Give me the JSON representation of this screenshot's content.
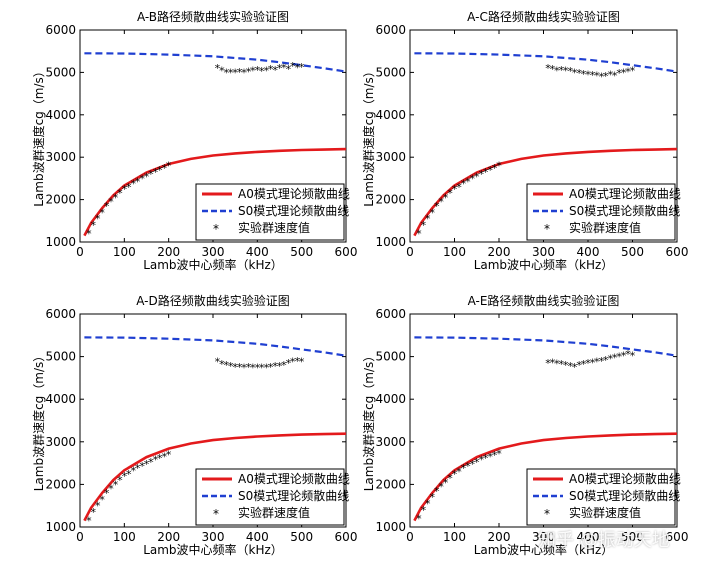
{
  "chart_data": [
    {
      "type": "line",
      "title": "A-B路径频散曲线实验验证图",
      "xlabel": "Lamb波中心频率（kHz）",
      "ylabel": "Lamb波群速度cg（m/s）",
      "xlim": [
        0,
        600
      ],
      "ylim": [
        1000,
        6000
      ],
      "xticks": [
        0,
        100,
        200,
        300,
        400,
        500,
        600
      ],
      "yticks": [
        1000,
        2000,
        3000,
        4000,
        5000,
        6000
      ],
      "legend_position": "bottom-right",
      "series": [
        {
          "name": "A0模式理论频散曲线",
          "kind": "line",
          "color": "#e31a1c",
          "x": [
            10,
            25,
            50,
            75,
            100,
            150,
            200,
            250,
            300,
            350,
            400,
            450,
            500,
            550,
            600
          ],
          "y": [
            1150,
            1450,
            1800,
            2100,
            2330,
            2640,
            2840,
            2960,
            3040,
            3090,
            3125,
            3150,
            3170,
            3180,
            3190
          ]
        },
        {
          "name": "S0模式理论频散曲线",
          "kind": "dashed",
          "color": "#1f3fd1",
          "x": [
            10,
            100,
            200,
            300,
            400,
            450,
            500,
            550,
            600
          ],
          "y": [
            5450,
            5445,
            5420,
            5380,
            5300,
            5240,
            5170,
            5100,
            5020
          ]
        },
        {
          "name": "实验群速度值",
          "kind": "marker",
          "color": "#000000",
          "x": [
            20,
            30,
            40,
            50,
            60,
            70,
            80,
            90,
            100,
            110,
            120,
            130,
            140,
            150,
            160,
            170,
            180,
            190,
            200,
            310,
            320,
            330,
            340,
            350,
            360,
            370,
            380,
            390,
            400,
            410,
            420,
            430,
            440,
            450,
            460,
            470,
            480,
            490,
            500
          ],
          "y": [
            1200,
            1400,
            1550,
            1700,
            1850,
            1950,
            2050,
            2150,
            2250,
            2300,
            2380,
            2430,
            2500,
            2550,
            2600,
            2650,
            2700,
            2750,
            2800,
            5100,
            5050,
            5000,
            5000,
            5000,
            5010,
            5000,
            5020,
            5040,
            5060,
            5030,
            5050,
            5080,
            5060,
            5100,
            5120,
            5080,
            5150,
            5120,
            5130
          ]
        }
      ]
    },
    {
      "type": "line",
      "title": "A-C路径频散曲线实验验证图",
      "xlabel": "Lamb波中心频率（kHz）",
      "ylabel": "Lamb波群速度cg（m/s）",
      "xlim": [
        0,
        600
      ],
      "ylim": [
        1000,
        6000
      ],
      "xticks": [
        0,
        100,
        200,
        300,
        400,
        500,
        600
      ],
      "yticks": [
        1000,
        2000,
        3000,
        4000,
        5000,
        6000
      ],
      "legend_position": "bottom-right",
      "series": [
        {
          "name": "A0模式理论频散曲线",
          "kind": "line",
          "color": "#e31a1c",
          "x": [
            10,
            25,
            50,
            75,
            100,
            150,
            200,
            250,
            300,
            350,
            400,
            450,
            500,
            550,
            600
          ],
          "y": [
            1150,
            1450,
            1800,
            2100,
            2330,
            2640,
            2840,
            2960,
            3040,
            3090,
            3125,
            3150,
            3170,
            3180,
            3190
          ]
        },
        {
          "name": "S0模式理论频散曲线",
          "kind": "dashed",
          "color": "#1f3fd1",
          "x": [
            10,
            100,
            200,
            300,
            400,
            450,
            500,
            550,
            600
          ],
          "y": [
            5450,
            5445,
            5420,
            5380,
            5300,
            5240,
            5170,
            5100,
            5020
          ]
        },
        {
          "name": "实验群速度值",
          "kind": "marker",
          "color": "#000000",
          "x": [
            20,
            30,
            40,
            50,
            60,
            70,
            80,
            90,
            100,
            110,
            120,
            130,
            140,
            150,
            160,
            170,
            180,
            190,
            200,
            310,
            320,
            330,
            340,
            350,
            360,
            370,
            380,
            390,
            400,
            410,
            420,
            430,
            440,
            450,
            460,
            470,
            480,
            490,
            500
          ],
          "y": [
            1200,
            1400,
            1550,
            1700,
            1850,
            1950,
            2050,
            2150,
            2250,
            2300,
            2380,
            2430,
            2500,
            2550,
            2600,
            2650,
            2700,
            2750,
            2800,
            5100,
            5080,
            5050,
            5060,
            5040,
            5030,
            5000,
            4980,
            4960,
            4950,
            4940,
            4930,
            4900,
            4920,
            4950,
            4930,
            4980,
            5000,
            5020,
            5050
          ]
        }
      ]
    },
    {
      "type": "line",
      "title": "A-D路径频散曲线实验验证图",
      "xlabel": "Lamb波中心频率（kHz）",
      "ylabel": "Lamb波群速度cg（m/s）",
      "xlim": [
        0,
        600
      ],
      "ylim": [
        1000,
        6000
      ],
      "xticks": [
        0,
        100,
        200,
        300,
        400,
        500,
        600
      ],
      "yticks": [
        1000,
        2000,
        3000,
        4000,
        5000,
        6000
      ],
      "legend_position": "bottom-right",
      "series": [
        {
          "name": "A0模式理论频散曲线",
          "kind": "line",
          "color": "#e31a1c",
          "x": [
            10,
            25,
            50,
            75,
            100,
            150,
            200,
            250,
            300,
            350,
            400,
            450,
            500,
            550,
            600
          ],
          "y": [
            1150,
            1450,
            1800,
            2100,
            2330,
            2640,
            2840,
            2960,
            3040,
            3090,
            3125,
            3150,
            3170,
            3180,
            3190
          ]
        },
        {
          "name": "S0模式理论频散曲线",
          "kind": "dashed",
          "color": "#1f3fd1",
          "x": [
            10,
            100,
            200,
            300,
            400,
            450,
            500,
            550,
            600
          ],
          "y": [
            5450,
            5445,
            5420,
            5380,
            5300,
            5240,
            5170,
            5100,
            5020
          ]
        },
        {
          "name": "实验群速度值",
          "kind": "marker",
          "color": "#000000",
          "x": [
            20,
            30,
            40,
            50,
            60,
            70,
            80,
            90,
            100,
            110,
            120,
            130,
            140,
            150,
            160,
            170,
            180,
            190,
            200,
            310,
            320,
            330,
            340,
            350,
            360,
            370,
            380,
            390,
            400,
            410,
            420,
            430,
            440,
            450,
            460,
            470,
            480,
            490,
            500
          ],
          "y": [
            1150,
            1350,
            1500,
            1650,
            1800,
            1900,
            2000,
            2100,
            2200,
            2250,
            2330,
            2380,
            2430,
            2480,
            2530,
            2580,
            2620,
            2650,
            2700,
            4880,
            4830,
            4800,
            4780,
            4760,
            4760,
            4750,
            4760,
            4740,
            4750,
            4740,
            4750,
            4760,
            4780,
            4780,
            4800,
            4850,
            4880,
            4900,
            4880
          ]
        }
      ]
    },
    {
      "type": "line",
      "title": "A-E路径频散曲线实验验证图",
      "xlabel": "Lamb波中心频率（kHz）",
      "ylabel": "Lamb波群速度cg（m/s）",
      "xlim": [
        0,
        600
      ],
      "ylim": [
        1000,
        6000
      ],
      "xticks": [
        0,
        100,
        200,
        300,
        400,
        500,
        600
      ],
      "yticks": [
        1000,
        2000,
        3000,
        4000,
        5000,
        6000
      ],
      "legend_position": "bottom-right",
      "series": [
        {
          "name": "A0模式理论频散曲线",
          "kind": "line",
          "color": "#e31a1c",
          "x": [
            10,
            25,
            50,
            75,
            100,
            150,
            200,
            250,
            300,
            350,
            400,
            450,
            500,
            550,
            600
          ],
          "y": [
            1150,
            1450,
            1800,
            2100,
            2330,
            2640,
            2840,
            2960,
            3040,
            3090,
            3125,
            3150,
            3170,
            3180,
            3190
          ]
        },
        {
          "name": "S0模式理论频散曲线",
          "kind": "dashed",
          "color": "#1f3fd1",
          "x": [
            10,
            100,
            200,
            300,
            400,
            450,
            500,
            550,
            600
          ],
          "y": [
            5450,
            5445,
            5420,
            5380,
            5300,
            5240,
            5170,
            5100,
            5020
          ]
        },
        {
          "name": "实验群速度值",
          "kind": "marker",
          "color": "#000000",
          "x": [
            20,
            30,
            40,
            50,
            60,
            70,
            80,
            90,
            100,
            110,
            120,
            130,
            140,
            150,
            160,
            170,
            180,
            190,
            200,
            310,
            320,
            330,
            340,
            350,
            360,
            370,
            380,
            390,
            400,
            410,
            420,
            430,
            440,
            450,
            460,
            470,
            480,
            490,
            500
          ],
          "y": [
            1200,
            1400,
            1550,
            1700,
            1850,
            1950,
            2050,
            2150,
            2250,
            2300,
            2380,
            2430,
            2480,
            2530,
            2580,
            2620,
            2660,
            2690,
            2720,
            4850,
            4860,
            4840,
            4830,
            4800,
            4780,
            4760,
            4800,
            4830,
            4850,
            4860,
            4880,
            4900,
            4920,
            4950,
            4980,
            5000,
            5020,
            5060,
            5020
          ]
        }
      ]
    }
  ],
  "watermark": "知乎 @振动天地"
}
